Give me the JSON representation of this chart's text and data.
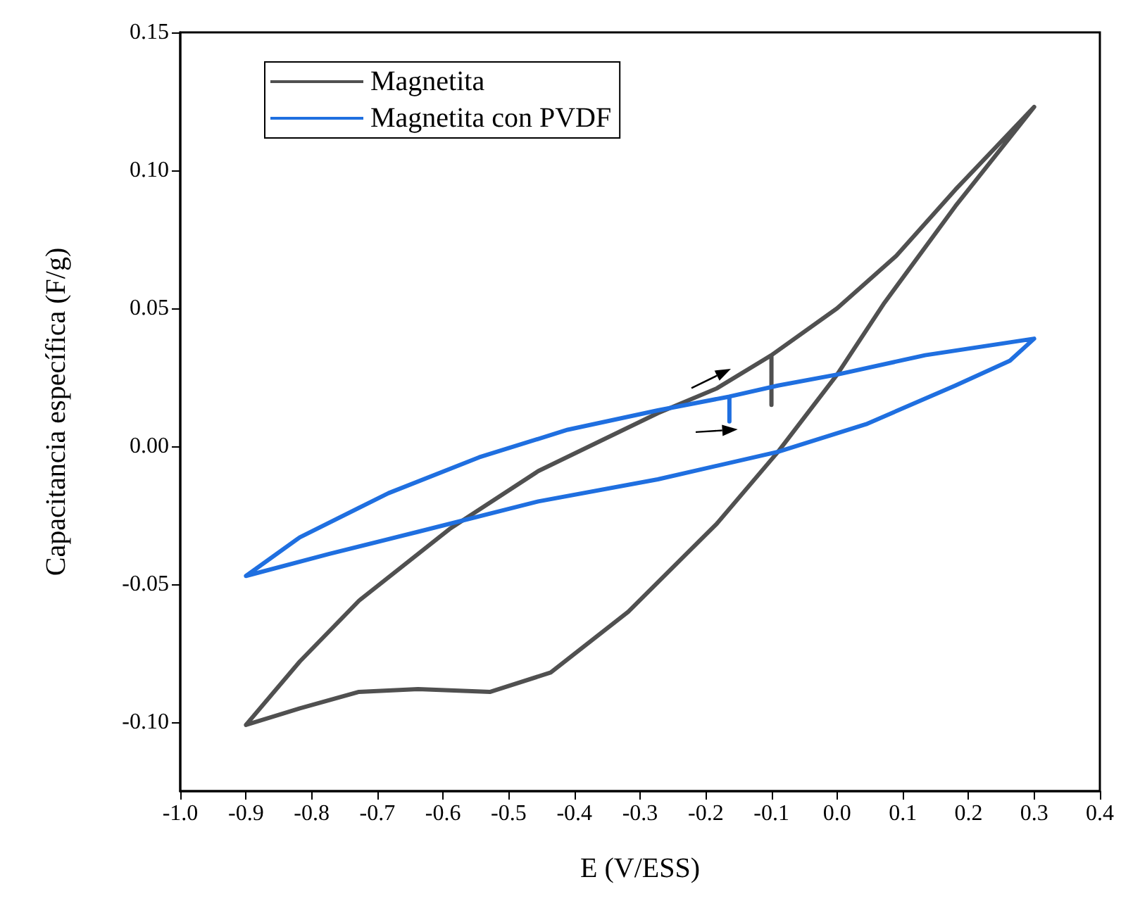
{
  "chart_data": {
    "type": "line",
    "xlabel": "E (V/ESS)",
    "ylabel": "Capacitancia específica (F/g)",
    "xlim": [
      -1.0,
      0.4
    ],
    "xticks": [
      {
        "value": -1.0,
        "label": "-1.0"
      },
      {
        "value": -0.9,
        "label": "-0.9"
      },
      {
        "value": -0.8,
        "label": "-0.8"
      },
      {
        "value": -0.7,
        "label": "-0.7"
      },
      {
        "value": -0.6,
        "label": "-0.6"
      },
      {
        "value": -0.5,
        "label": "-0.5"
      },
      {
        "value": -0.4,
        "label": "-0.4"
      },
      {
        "value": -0.3,
        "label": "-0.3"
      },
      {
        "value": -0.2,
        "label": "-0.2"
      },
      {
        "value": -0.1,
        "label": "-0.1"
      },
      {
        "value": 0,
        "label": "0.0"
      },
      {
        "value": 0.1,
        "label": "0.1"
      },
      {
        "value": 0.2,
        "label": "0.2"
      },
      {
        "value": 0.3,
        "label": "0.3"
      },
      {
        "value": 0.4,
        "label": "0.4"
      }
    ],
    "ylim": [
      -0.125,
      0.15
    ],
    "yticks": [
      {
        "value": -0.1,
        "label": "-0.10"
      },
      {
        "value": -0.05,
        "label": "-0.05"
      },
      {
        "value": 0,
        "label": "0.00"
      },
      {
        "value": 0.05,
        "label": "0.05"
      },
      {
        "value": 0.1,
        "label": "0.10"
      },
      {
        "value": 0.15,
        "label": "0.15"
      }
    ],
    "grid": false,
    "legend": "top left",
    "marker": "none",
    "line_style": "solid",
    "series": [
      {
        "name": "Magnetita",
        "color": "#505050",
        "x": [
          -0.1,
          -0.1,
          0,
          0.09,
          0.18,
          0.3,
          0.18,
          0.072,
          0,
          -0.09,
          -0.183,
          -0.318,
          -0.436,
          -0.528,
          -0.638,
          -0.728,
          -0.818,
          -0.9,
          -0.818,
          -0.728,
          -0.59,
          -0.455,
          -0.273,
          -0.183,
          -0.1
        ],
        "values": [
          0.015,
          0.033,
          0.05,
          0.069,
          0.093,
          0.123,
          0.087,
          0.052,
          0.026,
          -0.002,
          -0.028,
          -0.06,
          -0.082,
          -0.089,
          -0.088,
          -0.089,
          -0.095,
          -0.101,
          -0.078,
          -0.056,
          -0.03,
          -0.009,
          0.012,
          0.021,
          0.033
        ]
      },
      {
        "name": "Magnetita con PVDF",
        "color": "#1f6fe0",
        "x": [
          -0.164,
          -0.164,
          -0.09,
          0,
          0.134,
          0.3,
          0.263,
          0.18,
          0.044,
          -0.09,
          -0.273,
          -0.455,
          -0.638,
          -0.773,
          -0.9,
          -0.818,
          -0.683,
          -0.545,
          -0.41,
          -0.273,
          -0.164
        ],
        "values": [
          0.009,
          0.018,
          0.022,
          0.026,
          0.033,
          0.039,
          0.031,
          0.022,
          0.008,
          -0.002,
          -0.012,
          -0.02,
          -0.031,
          -0.039,
          -0.047,
          -0.033,
          -0.017,
          -0.004,
          0.006,
          0.013,
          0.018
        ]
      }
    ]
  }
}
